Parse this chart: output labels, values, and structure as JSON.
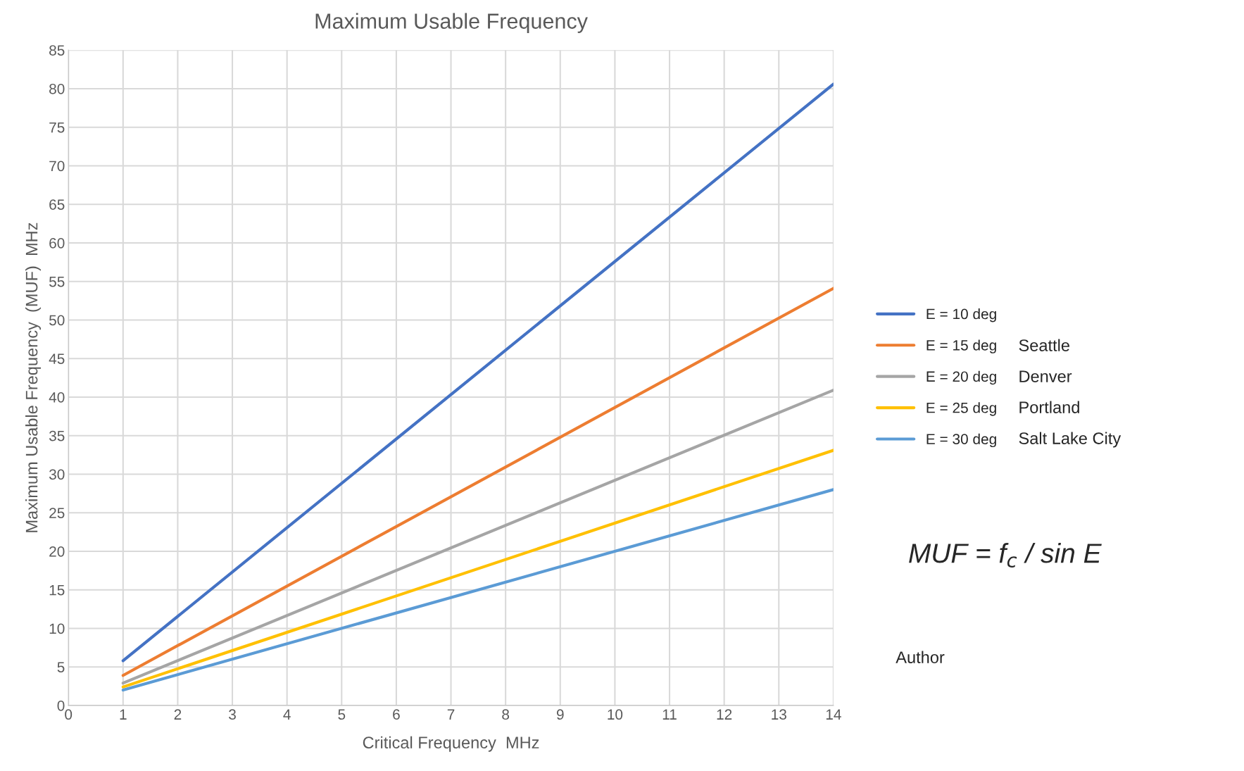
{
  "chart_data": {
    "type": "line",
    "title": "Maximum Usable Frequency",
    "xlabel": "Critical Frequency  MHz",
    "ylabel": "Maximum Usable Frequency  (MUF)  MHz",
    "x": [
      1,
      14
    ],
    "series": [
      {
        "name": "E = 10 deg",
        "color": "#4472c4",
        "values": [
          5.8,
          80.6
        ]
      },
      {
        "name": "E = 15 deg",
        "color": "#ed7d31",
        "values": [
          3.9,
          54.1
        ]
      },
      {
        "name": "E = 20 deg",
        "color": "#a5a5a5",
        "values": [
          2.9,
          40.9
        ]
      },
      {
        "name": "E = 25 deg",
        "color": "#ffc000",
        "values": [
          2.4,
          33.1
        ]
      },
      {
        "name": "E = 30 deg",
        "color": "#5b9bd5",
        "values": [
          2.0,
          28.0
        ]
      }
    ],
    "xlim": [
      0,
      14
    ],
    "xticks": [
      0,
      1,
      2,
      3,
      4,
      5,
      6,
      7,
      8,
      9,
      10,
      11,
      12,
      13,
      14
    ],
    "ylim": [
      0,
      85
    ],
    "yticks": [
      0,
      5,
      10,
      15,
      20,
      25,
      30,
      35,
      40,
      45,
      50,
      55,
      60,
      65,
      70,
      75,
      80,
      85
    ],
    "grid": true,
    "legend": "right",
    "line_style": "solid",
    "marker": "none",
    "annotations": [
      "Seattle",
      "Denver",
      "Portland",
      "Salt Lake City",
      "MUF = f$_{c}$ / sin E",
      "Author"
    ]
  }
}
